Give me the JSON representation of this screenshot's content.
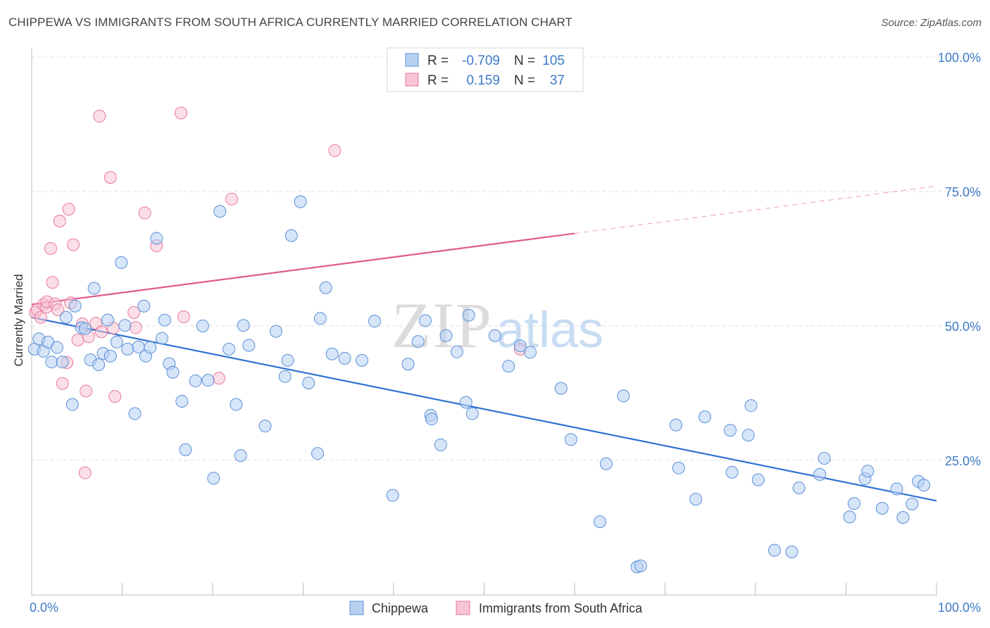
{
  "title": "CHIPPEWA VS IMMIGRANTS FROM SOUTH AFRICA CURRENTLY MARRIED CORRELATION CHART",
  "source": "Source: ZipAtlas.com",
  "watermark": {
    "zip": "ZIP",
    "atlas": "atlas"
  },
  "chart_data": {
    "type": "scatter",
    "title": "CHIPPEWA VS IMMIGRANTS FROM SOUTH AFRICA CURRENTLY MARRIED CORRELATION CHART",
    "xlabel": "",
    "ylabel": "Currently Married",
    "xlim": [
      0,
      100
    ],
    "ylim": [
      0,
      100
    ],
    "x_ticks": [
      "0.0%",
      "100.0%"
    ],
    "y_ticks": [
      {
        "value": 25,
        "label": "25.0%"
      },
      {
        "value": 50,
        "label": "50.0%"
      },
      {
        "value": 75,
        "label": "75.0%"
      },
      {
        "value": 100,
        "label": "100.0%"
      }
    ],
    "grid": true,
    "legend": {
      "placement": "top-center",
      "rows": [
        {
          "r_label": "R =",
          "r_value": "-0.709",
          "n_label": "N =",
          "n_value": "105"
        },
        {
          "r_label": "R =",
          "r_value": "0.159",
          "n_label": "N =",
          "n_value": "37"
        }
      ]
    },
    "colors": {
      "blue": "#5b8fd6",
      "blue_fill": "#b7d0f2",
      "pink": "#e8789c",
      "pink_fill": "#f7c4d4",
      "blue_line": "#2f72d2",
      "pink_line": "#e05c8c",
      "tick_label": "#3d7ac7"
    },
    "series": [
      {
        "name": "Chippewa",
        "r": -0.709,
        "n": 105,
        "trend": {
          "x0": 0,
          "y0": 51.6,
          "x1": 100,
          "y1": 17.5,
          "solid_to": 100
        },
        "points": [
          [
            0.3,
            45.7
          ],
          [
            0.8,
            47.6
          ],
          [
            1.3,
            45.3
          ],
          [
            1.8,
            47.0
          ],
          [
            2.2,
            43.3
          ],
          [
            2.8,
            46.0
          ],
          [
            3.4,
            43.3
          ],
          [
            3.8,
            51.6
          ],
          [
            4.5,
            35.4
          ],
          [
            4.8,
            53.7
          ],
          [
            5.5,
            49.7
          ],
          [
            5.9,
            49.5
          ],
          [
            6.5,
            43.7
          ],
          [
            6.9,
            57.0
          ],
          [
            7.4,
            42.8
          ],
          [
            7.9,
            44.9
          ],
          [
            8.4,
            51.1
          ],
          [
            8.7,
            44.4
          ],
          [
            9.4,
            47.0
          ],
          [
            9.9,
            61.8
          ],
          [
            10.3,
            50.1
          ],
          [
            10.6,
            45.7
          ],
          [
            11.4,
            33.7
          ],
          [
            11.8,
            46.1
          ],
          [
            12.4,
            53.7
          ],
          [
            12.6,
            44.4
          ],
          [
            13.1,
            46.0
          ],
          [
            13.8,
            66.3
          ],
          [
            14.4,
            47.7
          ],
          [
            14.7,
            51.1
          ],
          [
            15.2,
            43.0
          ],
          [
            15.6,
            41.4
          ],
          [
            16.6,
            36.0
          ],
          [
            17.0,
            27.0
          ],
          [
            18.1,
            39.8
          ],
          [
            18.9,
            50.0
          ],
          [
            19.5,
            39.9
          ],
          [
            20.1,
            21.7
          ],
          [
            20.8,
            71.3
          ],
          [
            21.8,
            45.7
          ],
          [
            22.6,
            35.4
          ],
          [
            23.1,
            25.9
          ],
          [
            23.4,
            50.1
          ],
          [
            24.0,
            46.4
          ],
          [
            25.8,
            31.4
          ],
          [
            27.0,
            49.0
          ],
          [
            28.0,
            40.6
          ],
          [
            28.3,
            43.6
          ],
          [
            28.7,
            66.8
          ],
          [
            29.7,
            73.1
          ],
          [
            30.6,
            39.4
          ],
          [
            31.6,
            26.3
          ],
          [
            31.9,
            51.4
          ],
          [
            32.5,
            57.1
          ],
          [
            33.2,
            44.8
          ],
          [
            34.6,
            44.0
          ],
          [
            36.5,
            43.6
          ],
          [
            37.9,
            50.9
          ],
          [
            39.9,
            18.5
          ],
          [
            41.6,
            42.9
          ],
          [
            42.7,
            47.1
          ],
          [
            43.5,
            51.0
          ],
          [
            44.1,
            33.4
          ],
          [
            44.2,
            32.7
          ],
          [
            45.2,
            27.9
          ],
          [
            45.8,
            48.2
          ],
          [
            47.0,
            45.2
          ],
          [
            48.0,
            35.8
          ],
          [
            48.3,
            52.0
          ],
          [
            48.7,
            33.7
          ],
          [
            51.2,
            48.2
          ],
          [
            52.7,
            42.5
          ],
          [
            54.0,
            46.3
          ],
          [
            55.1,
            45.1
          ],
          [
            58.5,
            38.4
          ],
          [
            59.6,
            28.9
          ],
          [
            62.8,
            13.6
          ],
          [
            63.5,
            24.4
          ],
          [
            65.4,
            37.0
          ],
          [
            66.9,
            5.2
          ],
          [
            67.3,
            5.4
          ],
          [
            71.2,
            31.6
          ],
          [
            71.5,
            23.6
          ],
          [
            73.4,
            17.8
          ],
          [
            74.4,
            33.1
          ],
          [
            77.2,
            30.6
          ],
          [
            77.4,
            22.8
          ],
          [
            79.2,
            29.7
          ],
          [
            79.5,
            35.2
          ],
          [
            80.3,
            21.4
          ],
          [
            82.1,
            8.3
          ],
          [
            84.0,
            8.0
          ],
          [
            84.8,
            19.9
          ],
          [
            87.1,
            22.4
          ],
          [
            87.6,
            25.4
          ],
          [
            90.4,
            14.5
          ],
          [
            90.9,
            17.0
          ],
          [
            92.1,
            21.6
          ],
          [
            92.4,
            23.0
          ],
          [
            94.0,
            16.1
          ],
          [
            95.6,
            19.7
          ],
          [
            96.3,
            14.4
          ],
          [
            97.3,
            16.9
          ],
          [
            98.0,
            21.1
          ],
          [
            98.6,
            20.4
          ]
        ]
      },
      {
        "name": "Immigrants from South Africa",
        "r": 0.159,
        "n": 37,
        "trend": {
          "x0": 0,
          "y0": 54.0,
          "x1": 100,
          "y1": 76.0,
          "solid_to": 60
        },
        "points": [
          [
            0.4,
            52.5
          ],
          [
            0.6,
            53.0
          ],
          [
            1.0,
            51.6
          ],
          [
            1.3,
            54.0
          ],
          [
            1.6,
            53.5
          ],
          [
            1.7,
            54.5
          ],
          [
            2.1,
            64.4
          ],
          [
            2.3,
            58.1
          ],
          [
            2.6,
            54.1
          ],
          [
            2.9,
            53.0
          ],
          [
            3.1,
            69.5
          ],
          [
            3.4,
            39.3
          ],
          [
            3.9,
            43.2
          ],
          [
            4.1,
            71.7
          ],
          [
            4.3,
            54.3
          ],
          [
            4.6,
            65.1
          ],
          [
            5.1,
            47.4
          ],
          [
            5.6,
            50.4
          ],
          [
            5.9,
            22.7
          ],
          [
            6.0,
            37.9
          ],
          [
            6.3,
            48.0
          ],
          [
            7.1,
            50.5
          ],
          [
            7.5,
            89.0
          ],
          [
            7.7,
            48.9
          ],
          [
            8.7,
            77.6
          ],
          [
            9.0,
            49.6
          ],
          [
            9.2,
            36.9
          ],
          [
            11.3,
            52.5
          ],
          [
            11.5,
            49.7
          ],
          [
            12.5,
            71.0
          ],
          [
            13.8,
            64.9
          ],
          [
            16.5,
            89.6
          ],
          [
            16.8,
            51.7
          ],
          [
            20.7,
            40.3
          ],
          [
            22.1,
            73.6
          ],
          [
            33.5,
            82.6
          ],
          [
            54.0,
            45.7
          ]
        ]
      }
    ]
  },
  "bottom_legend": [
    {
      "label": "Chippewa"
    },
    {
      "label": "Immigrants from South Africa"
    }
  ]
}
